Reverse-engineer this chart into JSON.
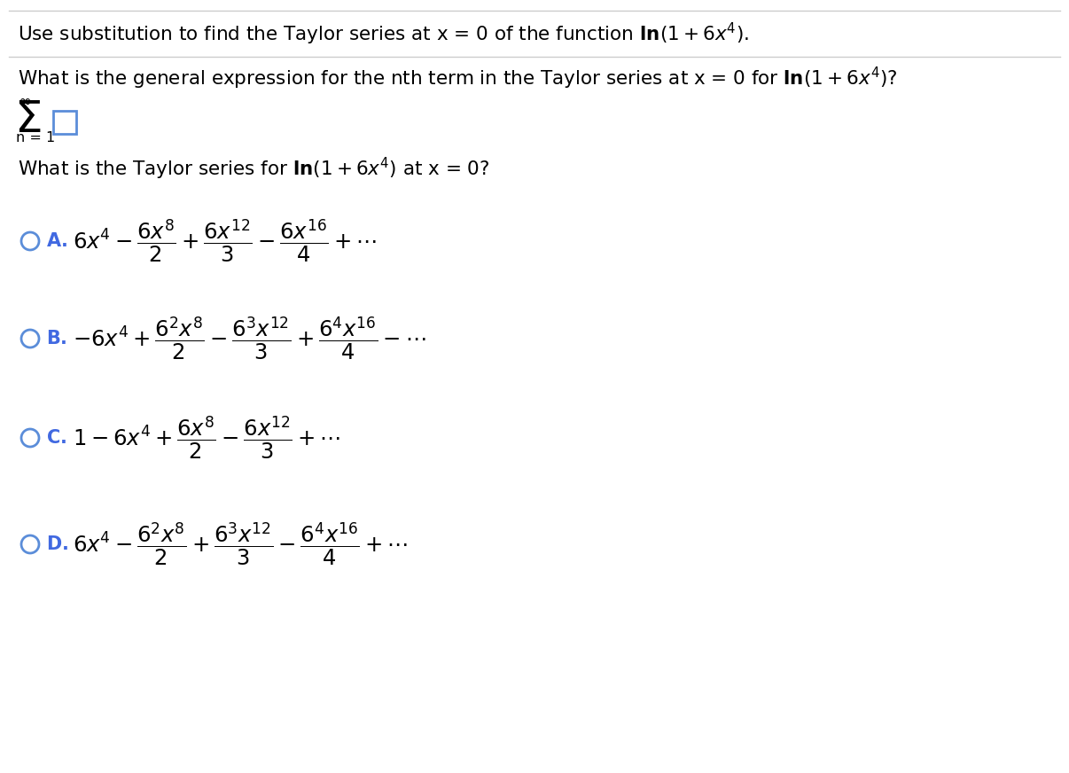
{
  "background_color": "#ffffff",
  "line1": "Use substitution to find the Taylor series at x\\,=\\,0 of the function $\\mathbf{ln}\\left(1+6x^{4}\\right).$",
  "line2": "What is the general expression for the nth term in the Taylor series at x\\,=\\,0 for $\\mathbf{ln}\\left(1+6x^{4}\\right)$?",
  "line3": "What is the Taylor series for $\\mathbf{ln}\\left(1+6x^{4}\\right)$ at x\\,=\\,0?",
  "optA": "$6x^4 - \\dfrac{6x^8}{2} + \\dfrac{6x^{12}}{3} - \\dfrac{6x^{16}}{4} + \\cdots$",
  "optB": "$-6x^4 + \\dfrac{6^2x^8}{2} - \\dfrac{6^3x^{12}}{3} + \\dfrac{6^4x^{16}}{4} - \\cdots$",
  "optC": "$1 - 6x^4 + \\dfrac{6x^8}{2} - \\dfrac{6x^{12}}{3} + \\cdots$",
  "optD": "$6x^4 - \\dfrac{6^2x^8}{2} + \\dfrac{6^3x^{12}}{3} - \\dfrac{6^4x^{16}}{4} + \\cdots$",
  "option_color": "#4169E1",
  "text_color": "#000000",
  "sep_color": "#cccccc",
  "radio_color": "#5b8dd9",
  "box_color": "#5b8dd9"
}
